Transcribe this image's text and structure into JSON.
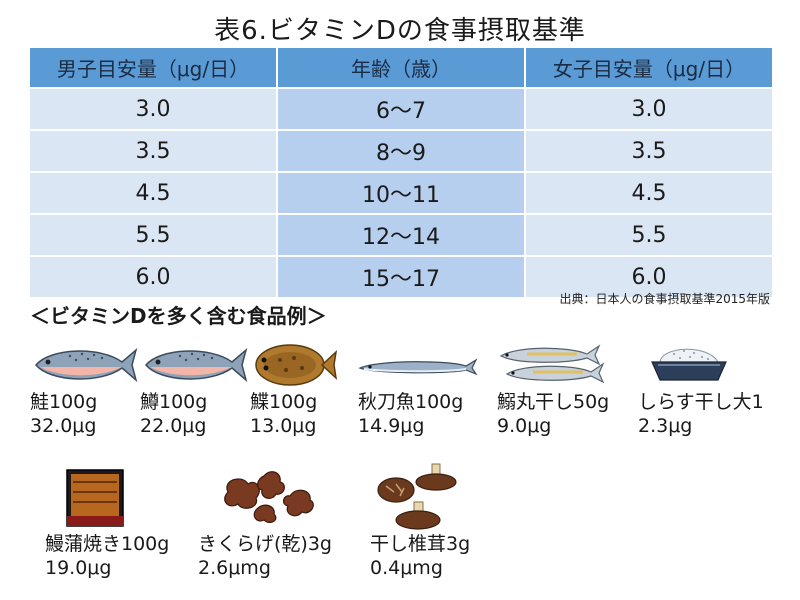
{
  "title": "表6.ビタミンDの食事摂取基準",
  "table": {
    "headers": [
      "男子目安量（μg/日）",
      "年齢（歳）",
      "女子目安量（μg/日）"
    ],
    "rows": [
      [
        "3.0",
        "6～7",
        "3.0"
      ],
      [
        "3.5",
        "8～9",
        "3.5"
      ],
      [
        "4.5",
        "10～11",
        "4.5"
      ],
      [
        "5.5",
        "12～14",
        "5.5"
      ],
      [
        "6.0",
        "15～17",
        "6.0"
      ]
    ]
  },
  "source": "出典：日本人の食事摂取基準2015年版",
  "foods_heading": "＜ビタミンDを多く含む食品例＞",
  "foods": [
    {
      "name": "鮭100g",
      "amount": "32.0μg",
      "icon": "salmon-icon"
    },
    {
      "name": "鱒100g",
      "amount": "22.0μg",
      "icon": "trout-icon"
    },
    {
      "name": "鰈100g",
      "amount": "13.0μg",
      "icon": "flounder-icon"
    },
    {
      "name": "秋刀魚100g",
      "amount": "14.9μg",
      "icon": "saury-icon"
    },
    {
      "name": "鰯丸干し50g",
      "amount": "9.0μg",
      "icon": "dried-sardine-icon"
    },
    {
      "name": "しらす干し大1",
      "amount": "2.3μg",
      "icon": "shirasu-icon"
    },
    {
      "name": "鰻蒲焼き100g",
      "amount": "19.0μg",
      "icon": "unagi-box-icon"
    },
    {
      "name": "きくらげ(乾)3g",
      "amount": "2.6μmg",
      "icon": "wood-ear-mushroom-icon"
    },
    {
      "name": "干し椎茸3g",
      "amount": "0.4μmg",
      "icon": "dried-shiitake-icon"
    }
  ]
}
